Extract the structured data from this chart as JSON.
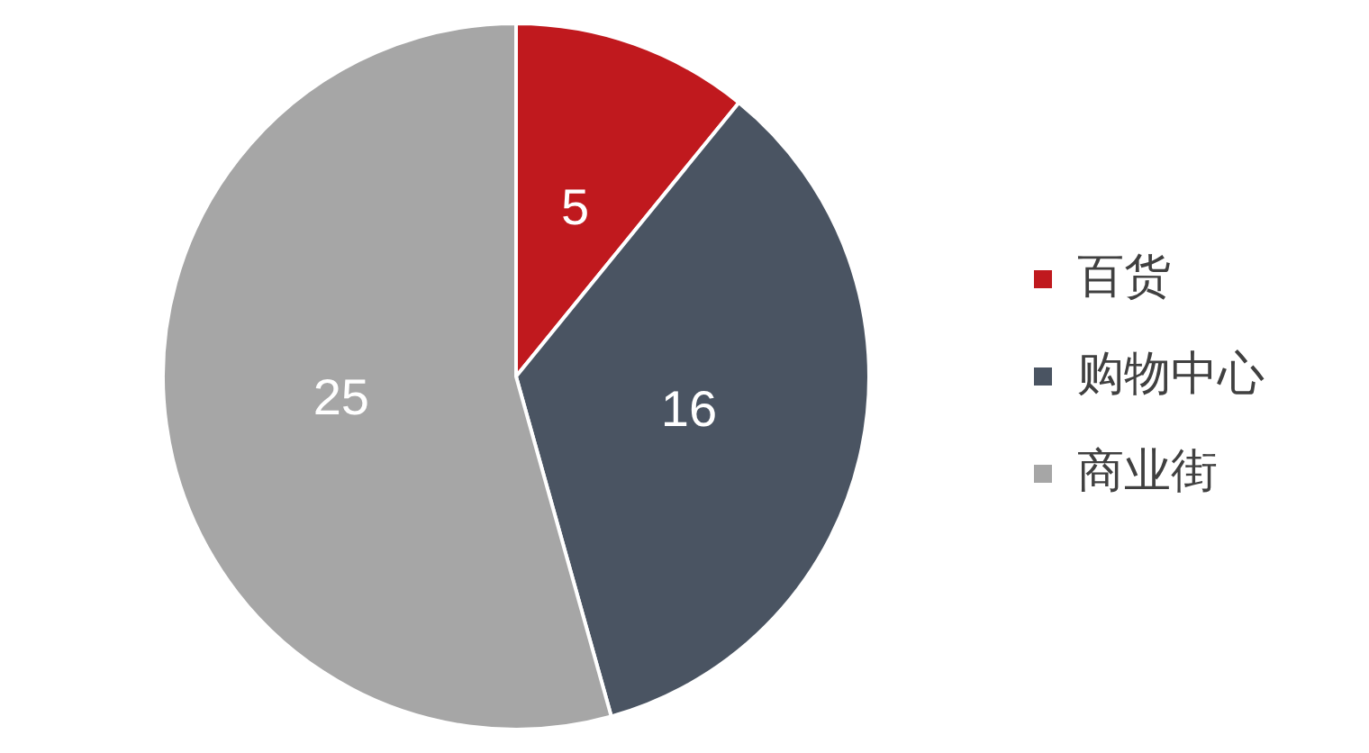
{
  "chart_data": {
    "type": "pie",
    "categories": [
      "百货",
      "购物中心",
      "商业街"
    ],
    "values": [
      5,
      16,
      25
    ],
    "colors": [
      "#c0191e",
      "#4a5462",
      "#a6a6a6"
    ],
    "data_labels": true,
    "legend": "right"
  }
}
